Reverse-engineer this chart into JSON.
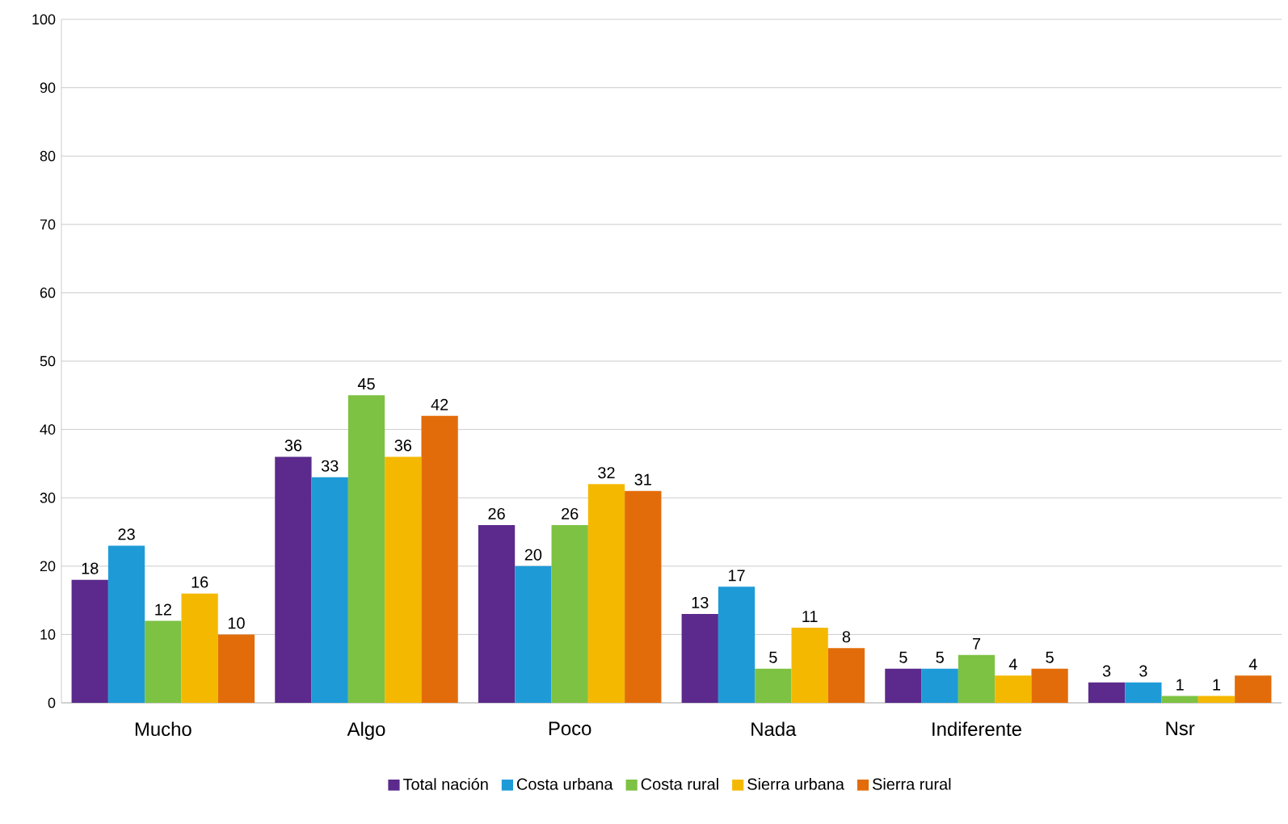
{
  "chart_data": {
    "type": "bar",
    "categories": [
      "Mucho",
      "Algo",
      "Poco",
      "Nada",
      "Indiferente",
      "Nsr"
    ],
    "series": [
      {
        "name": "Total nación",
        "color": "#5b2a8c",
        "values": [
          18,
          36,
          26,
          13,
          5,
          3
        ]
      },
      {
        "name": "Costa urbana",
        "color": "#1e9bd7",
        "values": [
          23,
          33,
          20,
          17,
          5,
          3
        ]
      },
      {
        "name": "Costa rural",
        "color": "#7dc242",
        "values": [
          12,
          45,
          26,
          5,
          7,
          1
        ]
      },
      {
        "name": "Sierra urbana",
        "color": "#f5b800",
        "values": [
          16,
          36,
          32,
          11,
          4,
          1
        ]
      },
      {
        "name": "Sierra rural",
        "color": "#e36c0a",
        "values": [
          10,
          42,
          31,
          8,
          5,
          4
        ]
      }
    ],
    "ylim": [
      0,
      100
    ],
    "yticks": [
      0,
      10,
      20,
      30,
      40,
      50,
      60,
      70,
      80,
      90,
      100
    ],
    "grid": "y",
    "legend": "bottom",
    "data_labels": true
  }
}
